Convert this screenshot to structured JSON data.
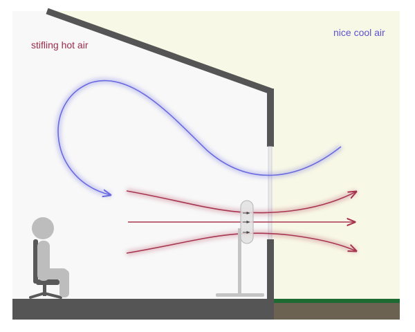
{
  "labels": {
    "hot_air": "stifling hot air",
    "cool_air": "nice cool air"
  },
  "colors": {
    "indoor_bg": "#f8f8f8",
    "outdoor_bg": "#f8f8e6",
    "wall": "#555555",
    "ground_outside": "#6b6251",
    "grass": "#1e6b32",
    "cool_air": "#6a6ae0",
    "hot_air": "#a83550",
    "hot_label": "#9a2a4a",
    "cool_label": "#5a52d0",
    "person": "#bdbdbd",
    "chair": "#595959",
    "fan": "#c4c4c4"
  }
}
